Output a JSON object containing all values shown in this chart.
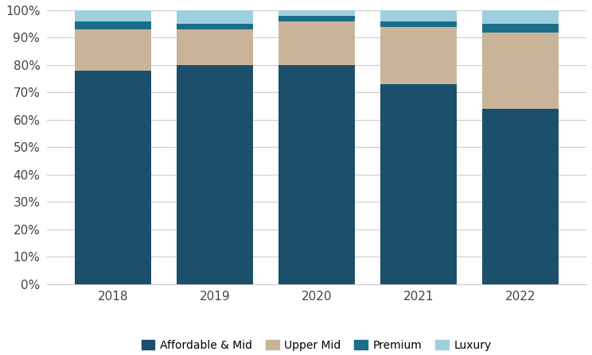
{
  "years": [
    "2018",
    "2019",
    "2020",
    "2021",
    "2022"
  ],
  "affordable_mid": [
    78,
    80,
    80,
    73,
    64
  ],
  "upper_mid": [
    15,
    13,
    16,
    21,
    28
  ],
  "premium": [
    3,
    2,
    2,
    2,
    3
  ],
  "luxury": [
    4,
    5,
    2,
    4,
    5
  ],
  "colors": {
    "affordable_mid": "#1b4f6b",
    "upper_mid": "#c9b49a",
    "premium": "#1a6e8a",
    "luxury": "#9ecfdf"
  },
  "legend_labels": [
    "Affordable & Mid",
    "Upper Mid",
    "Premium",
    "Luxury"
  ],
  "ylim": [
    0,
    100
  ],
  "yticks": [
    0,
    10,
    20,
    30,
    40,
    50,
    60,
    70,
    80,
    90,
    100
  ],
  "ytick_labels": [
    "0%",
    "10%",
    "20%",
    "30%",
    "40%",
    "50%",
    "60%",
    "70%",
    "80%",
    "90%",
    "100%"
  ],
  "bar_width": 0.75,
  "background_color": "#ffffff",
  "grid_color": "#cccccc",
  "figsize": [
    7.44,
    4.47
  ],
  "dpi": 100
}
